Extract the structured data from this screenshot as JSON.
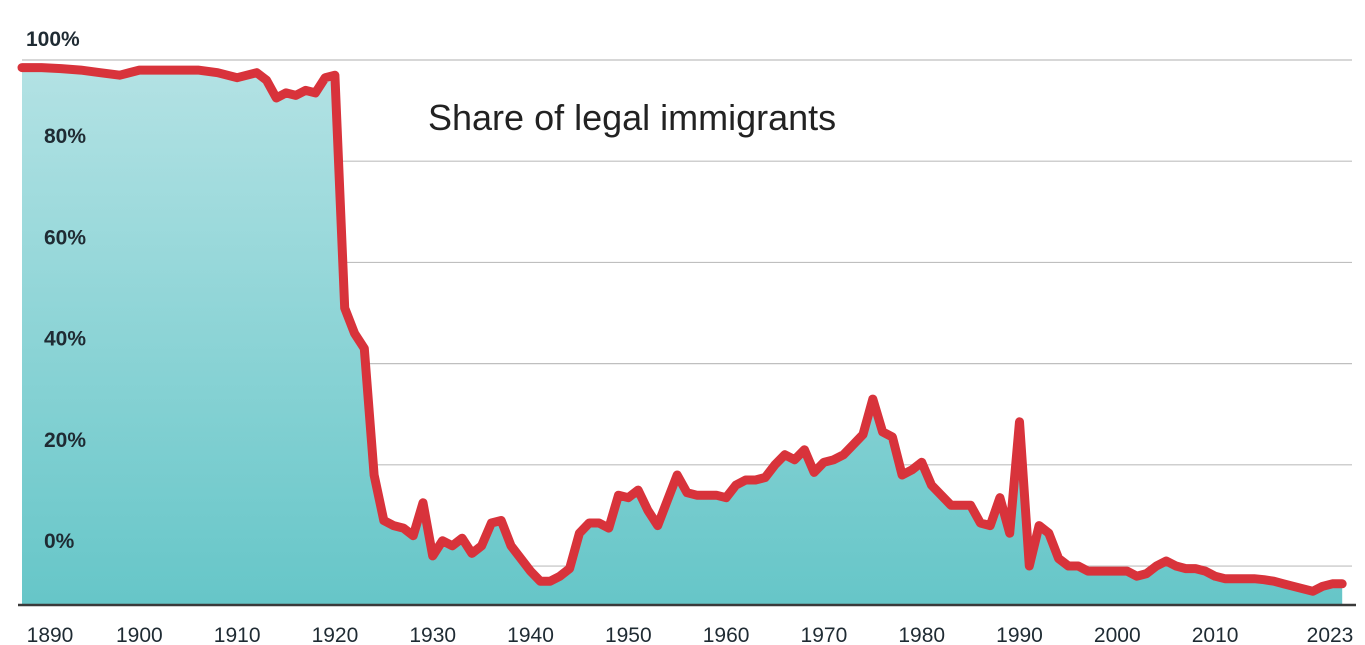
{
  "chart_data": {
    "type": "area",
    "title": "",
    "annotation": "Share of legal immigrants",
    "xlabel": "",
    "ylabel": "",
    "xlim": [
      1888,
      2024
    ],
    "ylim": [
      -7.5,
      100
    ],
    "grid": true,
    "x_ticks": [
      {
        "value": 1890,
        "label": "1890"
      },
      {
        "value": 1900,
        "label": "1900"
      },
      {
        "value": 1910,
        "label": "1910"
      },
      {
        "value": 1920,
        "label": "1920"
      },
      {
        "value": 1930,
        "label": "1930"
      },
      {
        "value": 1940,
        "label": "1940"
      },
      {
        "value": 1950,
        "label": "1950"
      },
      {
        "value": 1960,
        "label": "1960"
      },
      {
        "value": 1970,
        "label": "1970"
      },
      {
        "value": 1980,
        "label": "1980"
      },
      {
        "value": 1990,
        "label": "1990"
      },
      {
        "value": 2000,
        "label": "2000"
      },
      {
        "value": 2010,
        "label": "2010"
      },
      {
        "value": 2023,
        "label": "2023"
      }
    ],
    "y_ticks": [
      {
        "value": 0,
        "label": "0%"
      },
      {
        "value": 20,
        "label": "20%"
      },
      {
        "value": 40,
        "label": "40%"
      },
      {
        "value": 60,
        "label": "60%"
      },
      {
        "value": 80,
        "label": "80%"
      },
      {
        "value": 100,
        "label": "100%"
      }
    ],
    "colors": {
      "line": "#d8333b",
      "area_top": "#b3e2e4",
      "area_bottom": "#66c6c8",
      "grid": "#bfbfbf",
      "baseline": "#3a3a3a"
    },
    "series": [
      {
        "x": [
          1888,
          1890,
          1892,
          1894,
          1896,
          1898,
          1900,
          1902,
          1904,
          1906,
          1908,
          1910,
          1912,
          1913,
          1914,
          1915,
          1916,
          1917,
          1918,
          1919,
          1920,
          1921,
          1922,
          1923,
          1924,
          1925,
          1926,
          1927,
          1928,
          1929,
          1930,
          1931,
          1932,
          1933,
          1934,
          1935,
          1936,
          1937,
          1938,
          1939,
          1940,
          1941,
          1942,
          1943,
          1944,
          1945,
          1946,
          1947,
          1948,
          1949,
          1950,
          1951,
          1952,
          1953,
          1954,
          1955,
          1956,
          1957,
          1958,
          1959,
          1960,
          1961,
          1962,
          1963,
          1964,
          1965,
          1966,
          1967,
          1968,
          1969,
          1970,
          1971,
          1972,
          1973,
          1974,
          1975,
          1976,
          1977,
          1978,
          1979,
          1980,
          1981,
          1982,
          1983,
          1984,
          1985,
          1986,
          1987,
          1988,
          1989,
          1990,
          1991,
          1992,
          1993,
          1994,
          1995,
          1996,
          1997,
          1998,
          1999,
          2000,
          2001,
          2002,
          2003,
          2004,
          2005,
          2006,
          2007,
          2008,
          2009,
          2010,
          2011,
          2012,
          2013,
          2014,
          2015,
          2016,
          2017,
          2018,
          2019,
          2020,
          2021,
          2022,
          2023
        ],
        "values": [
          98.5,
          98.5,
          98.3,
          98,
          97.5,
          97,
          98,
          98,
          98,
          98,
          97.5,
          96.5,
          97.5,
          96,
          92.5,
          93.5,
          93,
          94,
          93.5,
          96.5,
          97,
          51,
          46,
          43,
          18,
          9,
          8,
          7.5,
          6,
          12.5,
          2,
          5,
          4,
          5.5,
          2.5,
          4,
          8.5,
          9,
          4,
          1.5,
          -1,
          -3,
          -3,
          -2,
          -0.5,
          6.5,
          8.5,
          8.5,
          7.5,
          14,
          13.5,
          15,
          11,
          8,
          13,
          18,
          14.5,
          14,
          14,
          14,
          13.5,
          16,
          17,
          17,
          17.5,
          20,
          22,
          21,
          23,
          18.5,
          20.5,
          21,
          22,
          24,
          26,
          33,
          26.5,
          25.5,
          18,
          19,
          20.5,
          16,
          14,
          12,
          12,
          12,
          8.5,
          8,
          13.5,
          6.5,
          28.5,
          0,
          8,
          6.5,
          1.5,
          0,
          0,
          -1,
          -1,
          -1,
          -1,
          -1,
          -2,
          -1.5,
          0,
          1,
          0,
          -0.5,
          -0.5,
          -1,
          -2,
          -2.5,
          -2.5,
          -2.5,
          -2.5,
          -2.7,
          -3,
          -3.5,
          -4,
          -4.5,
          -5,
          -4,
          -3.5,
          -3.5
        ]
      }
    ]
  }
}
